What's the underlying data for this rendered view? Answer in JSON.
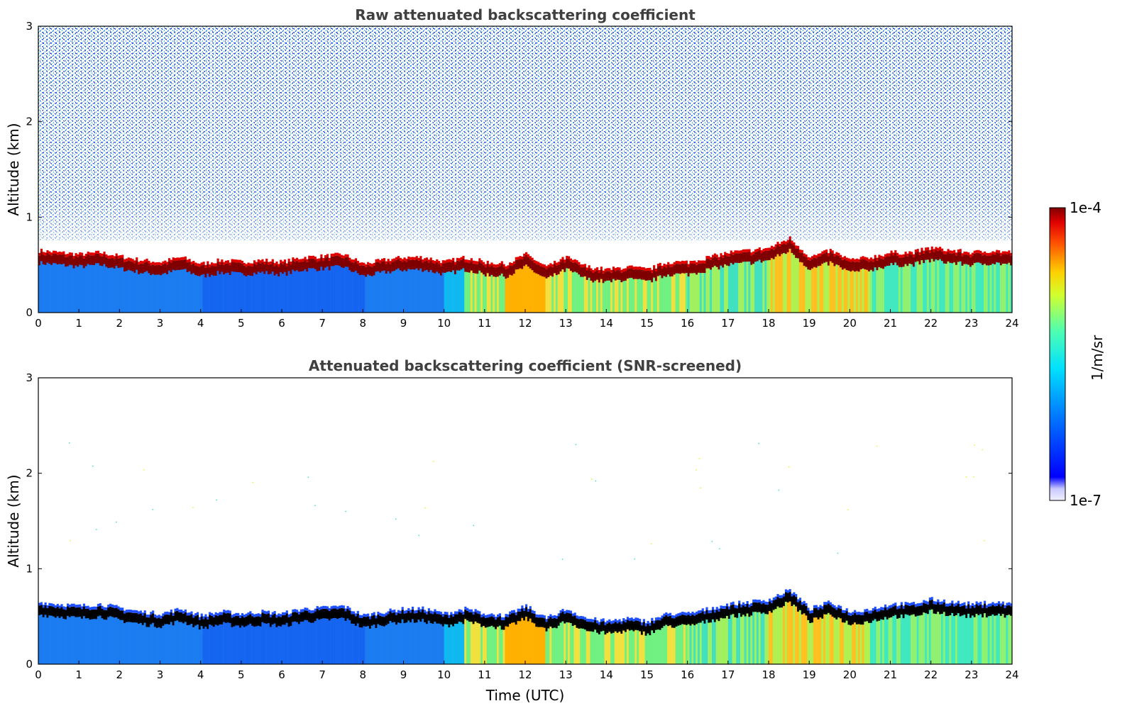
{
  "chart_data": [
    {
      "type": "heatmap",
      "title": "Raw attenuated backscattering coefficient",
      "xlabel": "",
      "ylabel": "Altitude (km)",
      "xlim": [
        0,
        24
      ],
      "ylim": [
        0,
        3
      ],
      "x_ticks": [
        "0",
        "1",
        "2",
        "3",
        "4",
        "5",
        "6",
        "7",
        "8",
        "9",
        "10",
        "11",
        "12",
        "13",
        "14",
        "15",
        "16",
        "17",
        "18",
        "19",
        "20",
        "21",
        "22",
        "23",
        "24"
      ],
      "y_ticks": [
        "0",
        "1",
        "2",
        "3"
      ],
      "screened": false
    },
    {
      "type": "heatmap",
      "title": "Attenuated backscattering coefficient (SNR-screened)",
      "xlabel": "Time (UTC)",
      "ylabel": "Altitude (km)",
      "xlim": [
        0,
        24
      ],
      "ylim": [
        0,
        3
      ],
      "x_ticks": [
        "0",
        "1",
        "2",
        "3",
        "4",
        "5",
        "6",
        "7",
        "8",
        "9",
        "10",
        "11",
        "12",
        "13",
        "14",
        "15",
        "16",
        "17",
        "18",
        "19",
        "20",
        "21",
        "22",
        "23",
        "24"
      ],
      "y_ticks": [
        "0",
        "1",
        "2",
        "3"
      ],
      "screened": true
    }
  ],
  "layer_top_km": {
    "hours": [
      0,
      0.5,
      1,
      1.5,
      2,
      2.5,
      3,
      3.5,
      4,
      4.5,
      5,
      5.5,
      6,
      6.5,
      7,
      7.5,
      8,
      8.5,
      9,
      9.5,
      10,
      10.5,
      11,
      11.5,
      12,
      12.5,
      13,
      13.5,
      14,
      14.5,
      15,
      15.5,
      16,
      16.5,
      17,
      17.5,
      18,
      18.5,
      19,
      19.5,
      20,
      20.5,
      21,
      21.5,
      22,
      22.5,
      23,
      23.5,
      24
    ],
    "km": [
      0.62,
      0.6,
      0.58,
      0.6,
      0.56,
      0.52,
      0.5,
      0.55,
      0.48,
      0.52,
      0.5,
      0.52,
      0.5,
      0.55,
      0.56,
      0.58,
      0.48,
      0.52,
      0.55,
      0.55,
      0.5,
      0.55,
      0.5,
      0.48,
      0.58,
      0.45,
      0.55,
      0.45,
      0.42,
      0.45,
      0.42,
      0.5,
      0.5,
      0.55,
      0.6,
      0.62,
      0.65,
      0.75,
      0.55,
      0.62,
      0.52,
      0.55,
      0.6,
      0.6,
      0.65,
      0.62,
      0.6,
      0.62,
      0.6
    ]
  },
  "colorbar": {
    "label": "1/m/sr",
    "max_label": "1e-4",
    "min_label": "1e-7",
    "colormap": "jet"
  },
  "colors": {
    "layer_peak": "#7f0000",
    "screened_core": "#000000",
    "background": "#ffffff"
  }
}
